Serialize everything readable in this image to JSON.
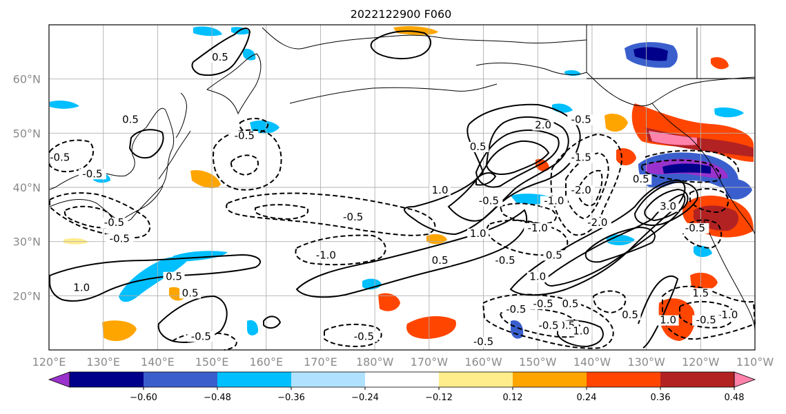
{
  "title": "2022122900 F060",
  "map": {
    "lon_range": [
      120,
      250
    ],
    "lat_range": [
      10,
      70
    ],
    "lat_ticks": [
      {
        "value": 20,
        "label": "20°N"
      },
      {
        "value": 30,
        "label": "30°N"
      },
      {
        "value": 40,
        "label": "40°N"
      },
      {
        "value": 50,
        "label": "50°N"
      },
      {
        "value": 60,
        "label": "60°N"
      }
    ],
    "lon_ticks": [
      {
        "value": 120,
        "label": "120°E"
      },
      {
        "value": 130,
        "label": "130°E"
      },
      {
        "value": 140,
        "label": "140°E"
      },
      {
        "value": 150,
        "label": "150°E"
      },
      {
        "value": 160,
        "label": "160°E"
      },
      {
        "value": 170,
        "label": "170°E"
      },
      {
        "value": 180,
        "label": "180°W"
      },
      {
        "value": 190,
        "label": "170°W"
      },
      {
        "value": 200,
        "label": "160°W"
      },
      {
        "value": 210,
        "label": "150°W"
      },
      {
        "value": 220,
        "label": "140°W"
      },
      {
        "value": 230,
        "label": "130°W"
      },
      {
        "value": 240,
        "label": "120°W"
      },
      {
        "value": 250,
        "label": "110°W"
      }
    ],
    "grid": true
  },
  "colorbar": {
    "colors": [
      "#9932cc",
      "#00008b",
      "#3a5fcd",
      "#00bfff",
      "#b0e2ff",
      "#ffffff",
      "#ffec8b",
      "#ffa500",
      "#ff4500",
      "#b22222",
      "#ff82ab"
    ],
    "tick_labels": [
      "−0.60",
      "−0.48",
      "−0.36",
      "−0.24",
      "−0.12",
      "0.12",
      "0.24",
      "0.36",
      "0.48",
      "0.60"
    ],
    "extend": "both"
  },
  "contour_labels": [
    {
      "text": "0.5",
      "lon": 151.5,
      "lat": 63.5
    },
    {
      "text": "0.5",
      "lon": 135,
      "lat": 52
    },
    {
      "text": "-0.5",
      "lon": 122,
      "lat": 45
    },
    {
      "text": "-0.5",
      "lon": 128,
      "lat": 42
    },
    {
      "text": "-0.5",
      "lon": 156,
      "lat": 49
    },
    {
      "text": "-0.5",
      "lon": 132,
      "lat": 33
    },
    {
      "text": "-0.5",
      "lon": 133,
      "lat": 30
    },
    {
      "text": "-0.5",
      "lon": 176,
      "lat": 34
    },
    {
      "text": "1.0",
      "lon": 126,
      "lat": 21
    },
    {
      "text": "0.5",
      "lon": 143,
      "lat": 23
    },
    {
      "text": "0.5",
      "lon": 146,
      "lat": 20
    },
    {
      "text": "-0.5",
      "lon": 148,
      "lat": 12
    },
    {
      "text": "-1.0",
      "lon": 171,
      "lat": 27
    },
    {
      "text": "0.5",
      "lon": 192,
      "lat": 26
    },
    {
      "text": "-0.5",
      "lon": 178,
      "lat": 12
    },
    {
      "text": "1.0",
      "lon": 192,
      "lat": 39
    },
    {
      "text": "0.5",
      "lon": 199,
      "lat": 47
    },
    {
      "text": "1.0",
      "lon": 199,
      "lat": 31
    },
    {
      "text": "-0.5",
      "lon": 201,
      "lat": 37
    },
    {
      "text": "-0.5",
      "lon": 204,
      "lat": 26
    },
    {
      "text": "-1.0",
      "lon": 210,
      "lat": 32
    },
    {
      "text": "2.0",
      "lon": 211,
      "lat": 51
    },
    {
      "text": "0.5",
      "lon": 213,
      "lat": 27
    },
    {
      "text": "1.0",
      "lon": 210,
      "lat": 23
    },
    {
      "text": "-0.5",
      "lon": 218,
      "lat": 52
    },
    {
      "text": "-1.5",
      "lon": 218,
      "lat": 45
    },
    {
      "text": "-2.0",
      "lon": 218,
      "lat": 39
    },
    {
      "text": "-1.0",
      "lon": 213,
      "lat": 37
    },
    {
      "text": "-2.0",
      "lon": 221,
      "lat": 33
    },
    {
      "text": "0.5",
      "lon": 229,
      "lat": 41
    },
    {
      "text": "3.0",
      "lon": 234,
      "lat": 36
    },
    {
      "text": "1.5",
      "lon": 238,
      "lat": 32
    },
    {
      "text": "-0.5",
      "lon": 239,
      "lat": 32
    },
    {
      "text": "1.0",
      "lon": 234,
      "lat": 15
    },
    {
      "text": "1.5",
      "lon": 240,
      "lat": 20
    },
    {
      "text": "-1.0",
      "lon": 245,
      "lat": 16
    },
    {
      "text": "-0.5",
      "lon": 241,
      "lat": 15
    },
    {
      "text": "0.5",
      "lon": 227,
      "lat": 16
    },
    {
      "text": "-0.5",
      "lon": 215,
      "lat": 14
    },
    {
      "text": "-0.5",
      "lon": 211,
      "lat": 18
    },
    {
      "text": "1.0",
      "lon": 218,
      "lat": 13
    },
    {
      "text": "0.5",
      "lon": 216,
      "lat": 18
    },
    {
      "text": "-0.5",
      "lon": 212,
      "lat": 14
    },
    {
      "text": "-0.5",
      "lon": 206,
      "lat": 17
    },
    {
      "text": "-0.5",
      "lon": 200,
      "lat": 11
    }
  ]
}
